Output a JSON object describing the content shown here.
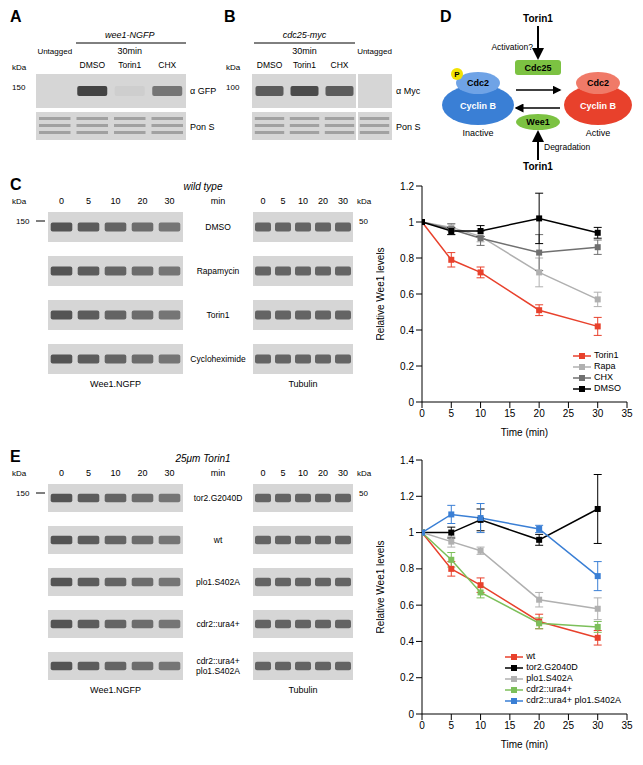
{
  "panelA": {
    "letter": "A",
    "untagged": "Untagged",
    "strain": "wee1-NGFP",
    "time": "30min",
    "lanes": [
      "DMSO",
      "Torin1",
      "CHX"
    ],
    "kda": "kDa",
    "marker": 150,
    "blots": [
      "α GFP",
      "Pon S"
    ]
  },
  "panelB": {
    "letter": "B",
    "strain": "cdc25-myc",
    "time": "30min",
    "lanes": [
      "DMSO",
      "Torin1",
      "CHX"
    ],
    "untagged": "Untagged",
    "kda": "kDa",
    "marker": 100,
    "blots": [
      "α Myc",
      "Pon S"
    ]
  },
  "panelD": {
    "letter": "D",
    "inhibitor_top": "Torin1",
    "activation": "Activation?",
    "activator": "Cdc25",
    "kinase": "Cdc2",
    "cyclin": "Cyclin B",
    "phospho": "P",
    "inactive": "Inactive",
    "active": "Active",
    "inhibitor": "Wee1",
    "degradation": "Degradation",
    "inhibitor_bottom": "Torin1"
  },
  "panelC": {
    "letter": "C",
    "strain": "wild type",
    "times": [
      0,
      5,
      10,
      20,
      30
    ],
    "time_unit": "min",
    "kda": "kDa",
    "left_marker": 150,
    "right_marker": 50,
    "rows": [
      "DMSO",
      "Rapamycin",
      "Torin1",
      "Cycloheximide"
    ],
    "blots": [
      "Wee1.NGFP",
      "Tubulin"
    ]
  },
  "panelE": {
    "letter": "E",
    "treatment": "25μm Torin1",
    "times": [
      0,
      5,
      10,
      20,
      30
    ],
    "time_unit": "min",
    "kda": "kDa",
    "left_marker": 150,
    "right_marker": 50,
    "rows": [
      "tor2.G2040D",
      "wt",
      "plo1.S402A",
      "cdr2::ura4+",
      "cdr2::ura4+ plo1.S402A"
    ],
    "blots": [
      "Wee1.NGFP",
      "Tubulin"
    ]
  },
  "chart_data": [
    {
      "type": "line",
      "xlabel": "Time (min)",
      "ylabel": "Relative Wee1 levels",
      "x": [
        0,
        5,
        10,
        20,
        30
      ],
      "xlim": [
        0,
        35
      ],
      "xticks": [
        0,
        5,
        10,
        15,
        20,
        25,
        30,
        35
      ],
      "ylim": [
        0,
        1.2
      ],
      "yticks": [
        0,
        0.2,
        0.4,
        0.6,
        0.8,
        1,
        1.2
      ],
      "grid": false,
      "legend": "lower right",
      "marker": "square",
      "series": [
        {
          "name": "Torin1",
          "color": "#e8412c",
          "values": [
            1,
            0.79,
            0.72,
            0.51,
            0.42
          ],
          "errors": [
            0,
            0.04,
            0.03,
            0.03,
            0.05
          ]
        },
        {
          "name": "Rapa",
          "color": "#b0b0b0",
          "values": [
            1,
            0.97,
            0.92,
            0.72,
            0.57
          ],
          "errors": [
            0,
            0.02,
            0.03,
            0.08,
            0.04
          ]
        },
        {
          "name": "CHX",
          "color": "#707070",
          "values": [
            1,
            0.96,
            0.91,
            0.83,
            0.86
          ],
          "errors": [
            0,
            0.03,
            0.04,
            0.1,
            0.04
          ]
        },
        {
          "name": "DMSO",
          "color": "#000000",
          "values": [
            1,
            0.95,
            0.95,
            1.02,
            0.94
          ],
          "errors": [
            0,
            0.02,
            0.03,
            0.14,
            0.03
          ]
        }
      ]
    },
    {
      "type": "line",
      "xlabel": "Time (min)",
      "ylabel": "Relative Wee1 levels",
      "x": [
        0,
        5,
        10,
        20,
        30
      ],
      "xlim": [
        0,
        35
      ],
      "xticks": [
        0,
        5,
        10,
        15,
        20,
        25,
        30,
        35
      ],
      "ylim": [
        0,
        1.4
      ],
      "yticks": [
        0,
        0.2,
        0.4,
        0.6,
        0.8,
        1,
        1.2,
        1.4
      ],
      "grid": false,
      "legend": "lower right",
      "marker": "square",
      "series": [
        {
          "name": "wt",
          "color": "#e8412c",
          "values": [
            1,
            0.8,
            0.71,
            0.51,
            0.42
          ],
          "errors": [
            0,
            0.04,
            0.04,
            0.04,
            0.04
          ]
        },
        {
          "name": "tor2.G2040D",
          "color": "#000000",
          "values": [
            1,
            1.0,
            1.07,
            0.96,
            1.13
          ],
          "errors": [
            0,
            0.03,
            0.06,
            0.03,
            0.19
          ]
        },
        {
          "name": "plo1.S402A",
          "color": "#b0b0b0",
          "values": [
            1,
            0.95,
            0.9,
            0.63,
            0.58
          ],
          "errors": [
            0,
            0.03,
            0.02,
            0.04,
            0.06
          ]
        },
        {
          "name": "cdr2::ura4+",
          "color": "#7cbf5a",
          "values": [
            1,
            0.85,
            0.67,
            0.5,
            0.48
          ],
          "errors": [
            0,
            0.04,
            0.03,
            0.03,
            0.03
          ]
        },
        {
          "name": "cdr2::ura4+ plo1.S402A",
          "color": "#3a7fd5",
          "values": [
            1,
            1.1,
            1.08,
            1.02,
            0.76
          ],
          "errors": [
            0,
            0.05,
            0.08,
            0.02,
            0.08
          ]
        }
      ]
    }
  ]
}
